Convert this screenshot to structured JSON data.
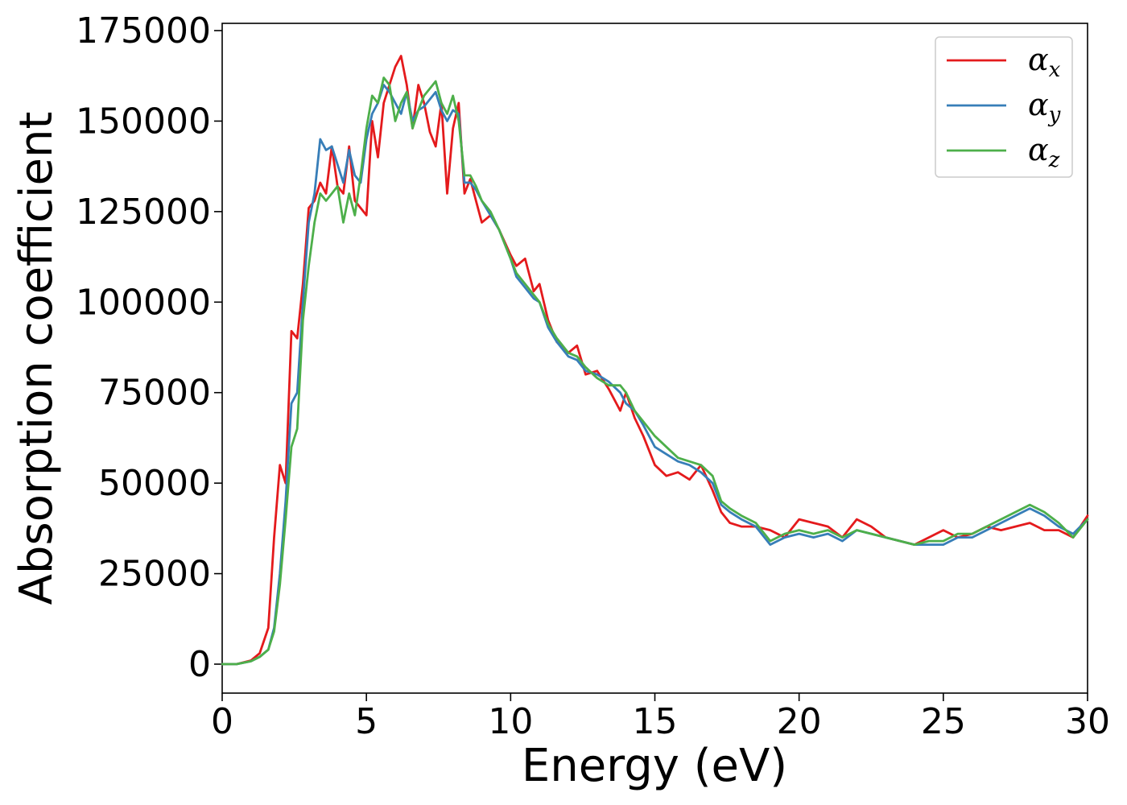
{
  "chart_data": {
    "type": "line",
    "title": "",
    "xlabel": "Energy (eV)",
    "ylabel": "Absorption coefficient",
    "xlim": [
      0,
      30
    ],
    "ylim": [
      -8000,
      177000
    ],
    "xticks": [
      0,
      5,
      10,
      15,
      20,
      25,
      30
    ],
    "xtick_labels": [
      "0",
      "5",
      "10",
      "15",
      "20",
      "25",
      "30"
    ],
    "yticks": [
      0,
      25000,
      50000,
      75000,
      100000,
      125000,
      150000,
      175000
    ],
    "ytick_labels": [
      "0",
      "25000",
      "50000",
      "75000",
      "100000",
      "125000",
      "150000",
      "175000"
    ],
    "grid": false,
    "legend_position": "top-right",
    "series": [
      {
        "name": "α_x",
        "label_main": "α",
        "label_sub": "x",
        "color": "#e41a1c",
        "x": [
          0,
          0.5,
          1.0,
          1.3,
          1.6,
          1.8,
          2.0,
          2.2,
          2.4,
          2.6,
          2.8,
          3.0,
          3.2,
          3.4,
          3.6,
          3.8,
          4.0,
          4.2,
          4.4,
          4.6,
          4.8,
          5.0,
          5.2,
          5.4,
          5.6,
          5.8,
          6.0,
          6.2,
          6.4,
          6.6,
          6.8,
          7.0,
          7.2,
          7.4,
          7.6,
          7.8,
          8.0,
          8.2,
          8.4,
          8.6,
          8.8,
          9.0,
          9.3,
          9.6,
          10.0,
          10.2,
          10.5,
          10.8,
          11.0,
          11.3,
          11.6,
          12.0,
          12.3,
          12.6,
          13.0,
          13.4,
          13.8,
          14.0,
          14.3,
          14.6,
          15.0,
          15.4,
          15.8,
          16.2,
          16.6,
          17.0,
          17.3,
          17.6,
          18.0,
          18.5,
          19.0,
          19.5,
          20.0,
          20.5,
          21.0,
          21.5,
          22.0,
          22.5,
          23.0,
          23.5,
          24.0,
          24.5,
          25.0,
          25.5,
          26.0,
          26.5,
          27.0,
          27.5,
          28.0,
          28.5,
          29.0,
          29.5,
          30.0
        ],
        "y": [
          0,
          0,
          1000,
          3000,
          10000,
          35000,
          55000,
          50000,
          92000,
          90000,
          105000,
          126000,
          128000,
          133000,
          130000,
          143000,
          132000,
          130000,
          143000,
          128000,
          126000,
          124000,
          150000,
          140000,
          155000,
          160000,
          165000,
          168000,
          160000,
          148000,
          160000,
          155000,
          147000,
          143000,
          155000,
          130000,
          148000,
          155000,
          130000,
          134000,
          128000,
          122000,
          124000,
          120000,
          113000,
          110000,
          112000,
          103000,
          105000,
          95000,
          89000,
          86000,
          88000,
          80000,
          81000,
          76000,
          70000,
          75000,
          68000,
          63000,
          55000,
          52000,
          53000,
          51000,
          55000,
          48000,
          42000,
          39000,
          38000,
          38000,
          37000,
          35000,
          40000,
          39000,
          38000,
          35000,
          40000,
          38000,
          35000,
          34000,
          33000,
          35000,
          37000,
          35000,
          36000,
          38000,
          37000,
          38000,
          39000,
          37000,
          37000,
          35000,
          41000
        ]
      },
      {
        "name": "α_y",
        "label_main": "α",
        "label_sub": "y",
        "color": "#377eb8",
        "x": [
          0,
          0.5,
          1.0,
          1.3,
          1.6,
          1.8,
          2.0,
          2.2,
          2.4,
          2.6,
          2.8,
          3.0,
          3.2,
          3.4,
          3.6,
          3.8,
          4.0,
          4.2,
          4.4,
          4.6,
          4.8,
          5.0,
          5.2,
          5.4,
          5.6,
          5.8,
          6.0,
          6.2,
          6.4,
          6.6,
          6.8,
          7.0,
          7.2,
          7.4,
          7.6,
          7.8,
          8.0,
          8.2,
          8.4,
          8.6,
          8.8,
          9.0,
          9.3,
          9.6,
          10.0,
          10.2,
          10.5,
          10.8,
          11.0,
          11.3,
          11.6,
          12.0,
          12.3,
          12.6,
          13.0,
          13.4,
          13.8,
          14.0,
          14.3,
          14.6,
          15.0,
          15.4,
          15.8,
          16.2,
          16.6,
          17.0,
          17.3,
          17.6,
          18.0,
          18.5,
          19.0,
          19.5,
          20.0,
          20.5,
          21.0,
          21.5,
          22.0,
          22.5,
          23.0,
          23.5,
          24.0,
          24.5,
          25.0,
          25.5,
          26.0,
          26.5,
          27.0,
          27.5,
          28.0,
          28.5,
          29.0,
          29.5,
          30.0
        ],
        "y": [
          0,
          0,
          800,
          2000,
          4000,
          10000,
          25000,
          45000,
          72000,
          75000,
          100000,
          122000,
          130000,
          145000,
          142000,
          143000,
          138000,
          133000,
          142000,
          135000,
          133000,
          145000,
          152000,
          155000,
          160000,
          158000,
          155000,
          152000,
          158000,
          150000,
          153000,
          154000,
          156000,
          158000,
          153000,
          150000,
          153000,
          152000,
          133000,
          133000,
          131000,
          128000,
          124000,
          120000,
          112000,
          107000,
          104000,
          101000,
          100000,
          93000,
          89000,
          85000,
          84000,
          81000,
          80000,
          78000,
          75000,
          72000,
          70000,
          66000,
          60000,
          58000,
          56000,
          55000,
          53000,
          50000,
          44000,
          42000,
          40000,
          38000,
          33000,
          35000,
          36000,
          35000,
          36000,
          34000,
          37000,
          36000,
          35000,
          34000,
          33000,
          33000,
          33000,
          35000,
          35000,
          37000,
          39000,
          41000,
          43000,
          41000,
          38000,
          36000,
          40000
        ]
      },
      {
        "name": "α_z",
        "label_main": "α",
        "label_sub": "z",
        "color": "#4daf4a",
        "x": [
          0,
          0.5,
          1.0,
          1.3,
          1.6,
          1.8,
          2.0,
          2.2,
          2.4,
          2.6,
          2.8,
          3.0,
          3.2,
          3.4,
          3.6,
          3.8,
          4.0,
          4.2,
          4.4,
          4.6,
          4.8,
          5.0,
          5.2,
          5.4,
          5.6,
          5.8,
          6.0,
          6.2,
          6.4,
          6.6,
          6.8,
          7.0,
          7.2,
          7.4,
          7.6,
          7.8,
          8.0,
          8.2,
          8.4,
          8.6,
          8.8,
          9.0,
          9.3,
          9.6,
          10.0,
          10.2,
          10.5,
          10.8,
          11.0,
          11.3,
          11.6,
          12.0,
          12.3,
          12.6,
          13.0,
          13.4,
          13.8,
          14.0,
          14.3,
          14.6,
          15.0,
          15.4,
          15.8,
          16.2,
          16.6,
          17.0,
          17.3,
          17.6,
          18.0,
          18.5,
          19.0,
          19.5,
          20.0,
          20.5,
          21.0,
          21.5,
          22.0,
          22.5,
          23.0,
          23.5,
          24.0,
          24.5,
          25.0,
          25.5,
          26.0,
          26.5,
          27.0,
          27.5,
          28.0,
          28.5,
          29.0,
          29.5,
          30.0
        ],
        "y": [
          0,
          0,
          800,
          2000,
          4000,
          9000,
          22000,
          40000,
          60000,
          65000,
          95000,
          110000,
          122000,
          130000,
          128000,
          130000,
          132000,
          122000,
          130000,
          124000,
          135000,
          148000,
          157000,
          155000,
          162000,
          160000,
          150000,
          155000,
          158000,
          148000,
          153000,
          157000,
          159000,
          161000,
          155000,
          152000,
          157000,
          150000,
          135000,
          135000,
          132000,
          128000,
          125000,
          120000,
          112000,
          108000,
          105000,
          102000,
          100000,
          94000,
          90000,
          86000,
          85000,
          82000,
          79000,
          77000,
          77000,
          75000,
          70000,
          67000,
          63000,
          60000,
          57000,
          56000,
          55000,
          52000,
          45000,
          43000,
          41000,
          39000,
          34000,
          36000,
          37000,
          36000,
          37000,
          35000,
          37000,
          36000,
          35000,
          34000,
          33000,
          34000,
          34000,
          36000,
          36000,
          38000,
          40000,
          42000,
          44000,
          42000,
          39000,
          35000,
          40000
        ]
      }
    ]
  }
}
